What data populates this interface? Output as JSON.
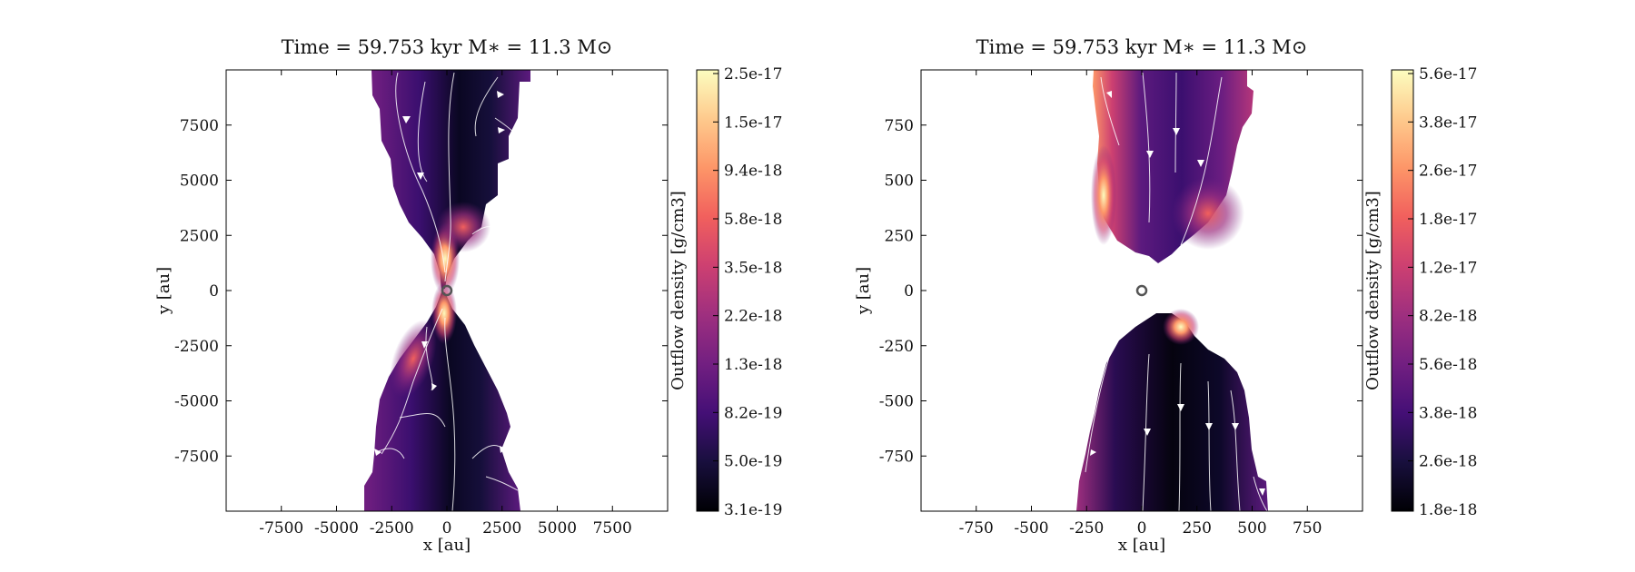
{
  "chart_data": [
    {
      "type": "heatmap",
      "title": "Time = 59.753 kyr    M∗ = 11.3 M⊙",
      "xlabel": "x [au]",
      "ylabel": "y [au]",
      "xlim": [
        -10000,
        10000
      ],
      "ylim": [
        -10000,
        10000
      ],
      "xticks": [
        -7500,
        -5000,
        -2500,
        0,
        2500,
        5000,
        7500
      ],
      "xtick_labels": [
        "-7500",
        "-5000",
        "-2500",
        "0",
        "2500",
        "5000",
        "7500"
      ],
      "yticks": [
        7500,
        5000,
        2500,
        0,
        -2500,
        -5000,
        -7500
      ],
      "ytick_labels": [
        "7500",
        "5000",
        "2500",
        "0",
        "-2500",
        "-5000",
        "-7500"
      ],
      "colorbar_label": "Outflow density [g/cm3]",
      "colorbar_ticks": [
        "2.5e-17",
        "1.5e-17",
        "9.4e-18",
        "5.8e-18",
        "3.5e-18",
        "2.2e-18",
        "1.3e-18",
        "8.2e-19",
        "5.0e-19",
        "3.1e-19"
      ],
      "colorbar_scale": "log",
      "colormap": "magma",
      "star_position": [
        0,
        0
      ],
      "region": "bipolar outflow cones along the y axis, narrow waist at the origin",
      "grid": false
    },
    {
      "type": "heatmap",
      "title": "Time = 59.753 kyr    M∗ = 11.3 M⊙",
      "xlabel": "x [au]",
      "ylabel": "y [au]",
      "xlim": [
        -1000,
        1000
      ],
      "ylim": [
        -1000,
        1000
      ],
      "xticks": [
        -750,
        -500,
        -250,
        0,
        250,
        500,
        750
      ],
      "xtick_labels": [
        "-750",
        "-500",
        "-250",
        "0",
        "250",
        "500",
        "750"
      ],
      "yticks": [
        750,
        500,
        250,
        0,
        -250,
        -500,
        -750
      ],
      "ytick_labels": [
        "750",
        "500",
        "250",
        "0",
        "-250",
        "-500",
        "-750"
      ],
      "colorbar_label": "Outflow density [g/cm3]",
      "colorbar_ticks": [
        "5.6e-17",
        "3.8e-17",
        "2.6e-17",
        "1.8e-17",
        "1.2e-17",
        "8.2e-18",
        "5.6e-18",
        "3.8e-18",
        "2.6e-18",
        "1.8e-18"
      ],
      "colorbar_scale": "log",
      "colormap": "magma",
      "star_position": [
        0,
        0
      ],
      "region": "bipolar outflow lobes above and below the origin with a gap near the star",
      "grid": false
    }
  ],
  "colors": {
    "magma": [
      "#000004",
      "#180f3d",
      "#440f76",
      "#721f81",
      "#9e2f7f",
      "#cd4071",
      "#f1605d",
      "#fd9668",
      "#feca8d",
      "#fcfdbf"
    ],
    "streamline": "#ffffff",
    "star_marker": "#555555"
  }
}
